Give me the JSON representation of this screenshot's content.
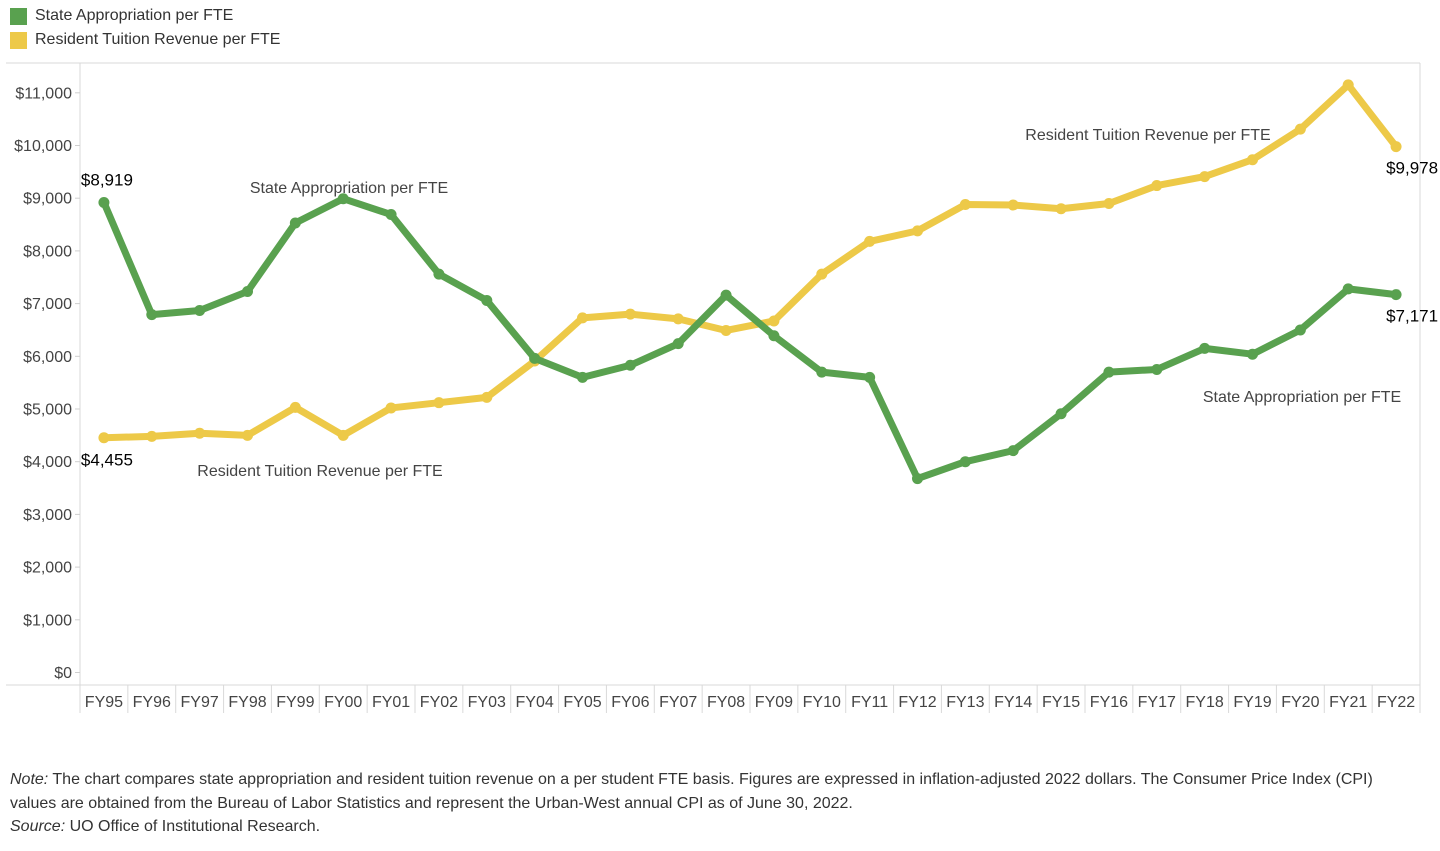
{
  "chart_data": {
    "type": "line",
    "categories": [
      "FY95",
      "FY96",
      "FY97",
      "FY98",
      "FY99",
      "FY00",
      "FY01",
      "FY02",
      "FY03",
      "FY04",
      "FY05",
      "FY06",
      "FY07",
      "FY08",
      "FY09",
      "FY10",
      "FY11",
      "FY12",
      "FY13",
      "FY14",
      "FY15",
      "FY16",
      "FY17",
      "FY18",
      "FY19",
      "FY20",
      "FY21",
      "FY22"
    ],
    "series": [
      {
        "name": "State Appropriation per FTE",
        "color": "#59A14F",
        "values": [
          8919,
          6790,
          6870,
          7230,
          8530,
          8990,
          8690,
          7560,
          7060,
          5960,
          5600,
          5830,
          6240,
          7160,
          6390,
          5700,
          5600,
          3680,
          4000,
          4210,
          4910,
          5700,
          5750,
          6150,
          6040,
          6500,
          7280,
          7171
        ]
      },
      {
        "name": "Resident Tuition Revenue per FTE",
        "color": "#EDC948",
        "values": [
          4455,
          4480,
          4540,
          4500,
          5030,
          4500,
          5020,
          5120,
          5220,
          5910,
          6730,
          6800,
          6710,
          6490,
          6670,
          7560,
          8180,
          8380,
          8880,
          8870,
          8800,
          8900,
          9240,
          9410,
          9730,
          10310,
          11150,
          9978
        ]
      }
    ],
    "ylim": [
      0,
      11500
    ],
    "yticks": [
      0,
      1000,
      2000,
      3000,
      4000,
      5000,
      6000,
      7000,
      8000,
      9000,
      10000,
      11000
    ],
    "ytick_labels": [
      "$0",
      "$1,000",
      "$2,000",
      "$3,000",
      "$4,000",
      "$5,000",
      "$6,000",
      "$7,000",
      "$8,000",
      "$9,000",
      "$10,000",
      "$11,000"
    ],
    "legend_position": "top-left",
    "data_labels": [
      {
        "series": 0,
        "index": 0,
        "text": "$8,919"
      },
      {
        "series": 1,
        "index": 0,
        "text": "$4,455"
      },
      {
        "series": 1,
        "index": 27,
        "text": "$9,978"
      },
      {
        "series": 0,
        "index": 27,
        "text": "$7,171"
      }
    ],
    "line_labels": [
      {
        "series": 0,
        "text": "State Appropriation per FTE"
      },
      {
        "series": 1,
        "text": "Resident Tuition Revenue per FTE"
      },
      {
        "series": 1,
        "text": "Resident Tuition Revenue per FTE"
      },
      {
        "series": 0,
        "text": "State Appropriation per FTE"
      }
    ]
  },
  "note": {
    "label": "Note:",
    "text": " The chart compares state appropriation and resident tuition revenue on a per student FTE basis. Figures are expressed in inflation-adjusted 2022 dollars. The Consumer Price Index (CPI) values are obtained from the Bureau of Labor Statistics and represent the Urban-West annual CPI as of June 30, 2022."
  },
  "source": {
    "label": "Source:",
    "text": " UO Office of Institutional Research."
  }
}
